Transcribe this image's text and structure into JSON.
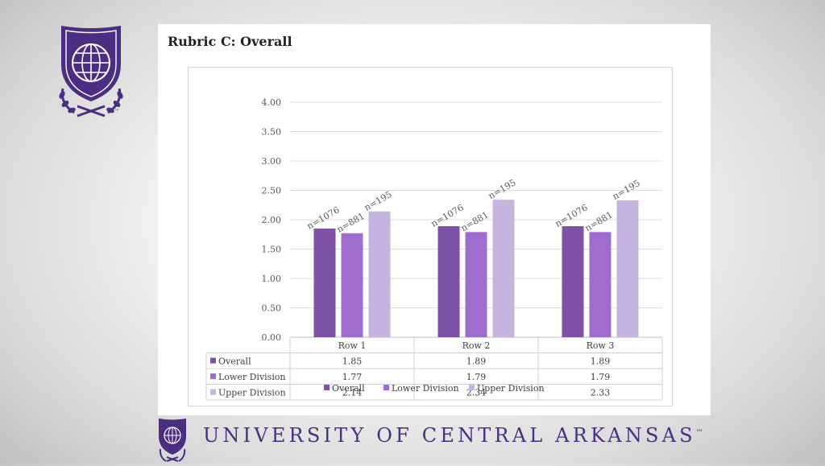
{
  "slide": {
    "title": "Rubric C: Overall",
    "footer_name": "UNIVERSITY OF CENTRAL ARKANSAS",
    "footer_tm": "™",
    "logo_tm": "™"
  },
  "colors": {
    "brand_purple": "#4b2e83",
    "overall": "#7f52a8",
    "lower_division": "#a06bcf",
    "upper_division": "#c7b3e0"
  },
  "chart_data": {
    "type": "bar",
    "title": "",
    "xlabel": "",
    "ylabel": "",
    "ylim": [
      0,
      4
    ],
    "yticks": [
      "0.00",
      "0.50",
      "1.00",
      "1.50",
      "2.00",
      "2.50",
      "3.00",
      "3.50",
      "4.00"
    ],
    "categories": [
      "Row 1",
      "Row 2",
      "Row 3"
    ],
    "grid": true,
    "legend_position": "bottom",
    "series": [
      {
        "name": "Overall",
        "values": [
          1.85,
          1.89,
          1.89
        ],
        "labels": [
          "1.85",
          "1.89",
          "1.89"
        ],
        "n": [
          "n=1076",
          "n=1076",
          "n=1076"
        ],
        "color": "#7f52a8"
      },
      {
        "name": "Lower Division",
        "values": [
          1.77,
          1.79,
          1.79
        ],
        "labels": [
          "1.77",
          "1.79",
          "1.79"
        ],
        "n": [
          "n=881",
          "n=881",
          "n=881"
        ],
        "color": "#a06bcf"
      },
      {
        "name": "Upper Division",
        "values": [
          2.14,
          2.34,
          2.33
        ],
        "labels": [
          "2.14",
          "2.34",
          "2.33"
        ],
        "n": [
          "n=195",
          "n=195",
          "n=195"
        ],
        "color": "#c7b3e0"
      }
    ]
  }
}
